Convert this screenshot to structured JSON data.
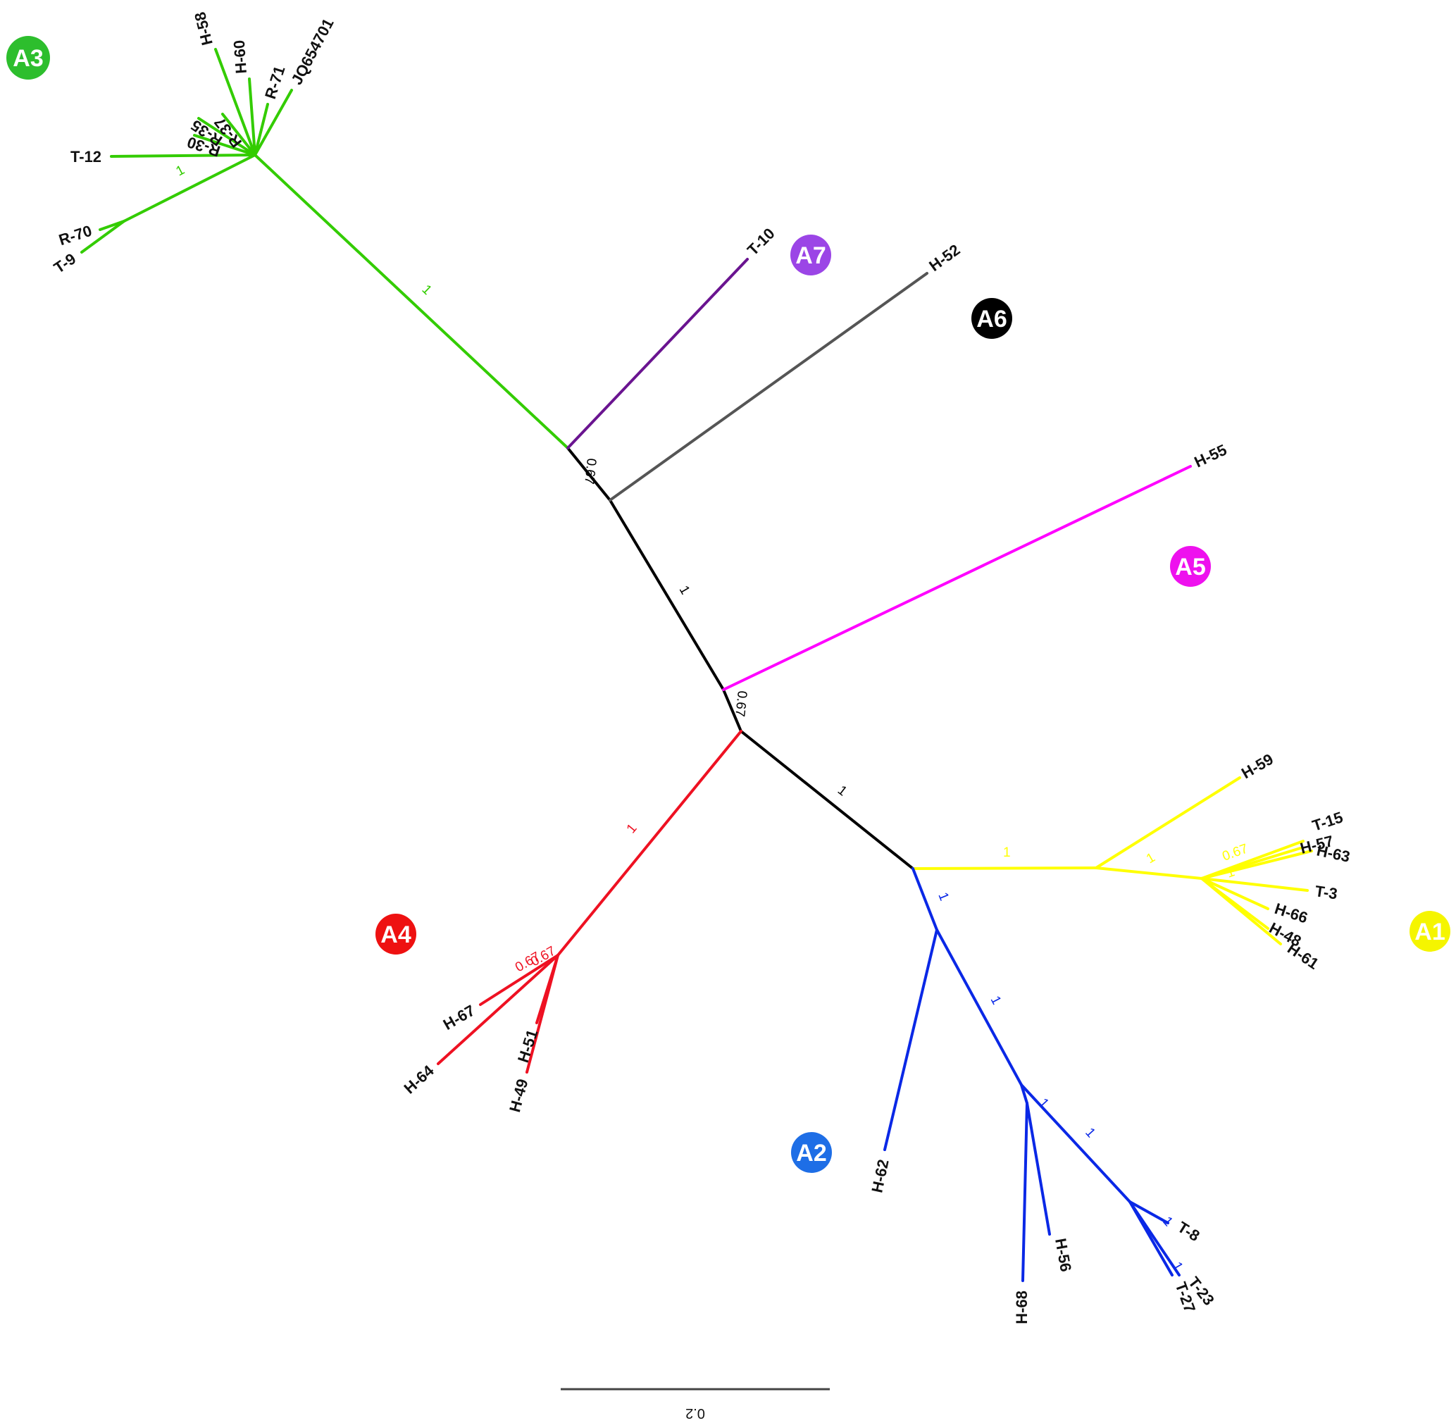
{
  "tree": {
    "clades": {
      "A1": {
        "label": "A1",
        "color": "#f5f500",
        "text_color": "#111111"
      },
      "A2": {
        "label": "A2",
        "color": "#1e6ee6",
        "text_color": "#ffffff"
      },
      "A3": {
        "label": "A3",
        "color": "#2dbe2d",
        "text_color": "#ffffff"
      },
      "A4": {
        "label": "A4",
        "color": "#ee1111",
        "text_color": "#ffffff"
      },
      "A5": {
        "label": "A5",
        "color": "#ee11ee",
        "text_color": "#ffffff"
      },
      "A6": {
        "label": "A6",
        "color": "#000000",
        "text_color": "#ffffff"
      },
      "A7": {
        "label": "A7",
        "color": "#9b45e6",
        "text_color": "#ffffff"
      }
    },
    "branch_colors": {
      "backbone": "#000000",
      "A1": "#ffff00",
      "A2": "#0a28e6",
      "A3": "#33cc00",
      "A4": "#ee1122",
      "A5": "#ff00ff",
      "A6": "#555555",
      "A7": "#6a1490"
    },
    "leaves": {
      "A3": [
        "H-58",
        "H-60",
        "R-71",
        "JQ654701",
        "R-37",
        "R-35",
        "R-30",
        "T-12",
        "R-70",
        "T-9"
      ],
      "A7": [
        "T-10"
      ],
      "A6": [
        "H-52"
      ],
      "A5": [
        "H-55"
      ],
      "A1": [
        "H-59",
        "T-15",
        "H-57",
        "H-63",
        "T-3",
        "H-66",
        "H-48",
        "H-61"
      ],
      "A2": [
        "H-62",
        "H-68",
        "H-56",
        "T-8",
        "T-23",
        "T-27"
      ],
      "A4": [
        "H-67",
        "H-64",
        "H-51",
        "H-49"
      ]
    },
    "support": {
      "a3_stem": "1",
      "a3_inner": "1",
      "a7_a6": "0.67",
      "backbone_upper": "1",
      "a5_node": "0.67",
      "backbone_lower": "1",
      "a4_stem": "1",
      "a4_inner_a": "0.67",
      "a4_inner_b": "0.67",
      "a1_stem": "1",
      "a1_inner": "1",
      "a1_tip": "0.67",
      "a1_tip_b": "1",
      "a2_stem": "1",
      "a2_inner": "1",
      "a2_node_a": "1",
      "a2_node_b": "1",
      "a2_tip_a": "1",
      "a2_tip_b": "1"
    },
    "scale_bar": {
      "label": "0.2"
    }
  }
}
